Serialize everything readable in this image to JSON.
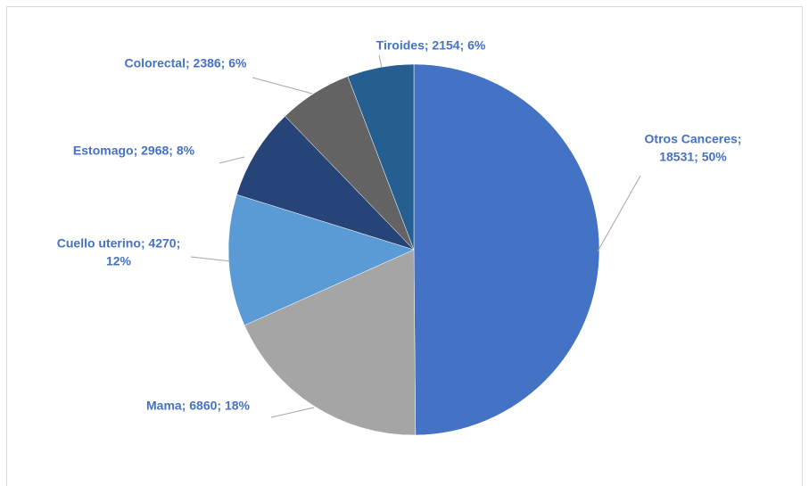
{
  "chart_data": {
    "type": "pie",
    "values": [
      18531,
      6860,
      4270,
      2968,
      2386,
      2154
    ],
    "value_labels": [
      [
        "Otros Canceres;",
        "18531; 50%"
      ],
      [
        "Mama; 6860; 18%"
      ],
      [
        "Cuello uterino; 4270;",
        "12%"
      ],
      [
        "Estomago; 2968; 8%"
      ],
      [
        "Colorectal; 2386; 6%"
      ],
      [
        "Tiroides; 2154; 6%"
      ]
    ],
    "colors": [
      "#4472c4",
      "#a5a5a5",
      "#5b9bd5",
      "#264478",
      "#636363",
      "#255e91"
    ]
  }
}
